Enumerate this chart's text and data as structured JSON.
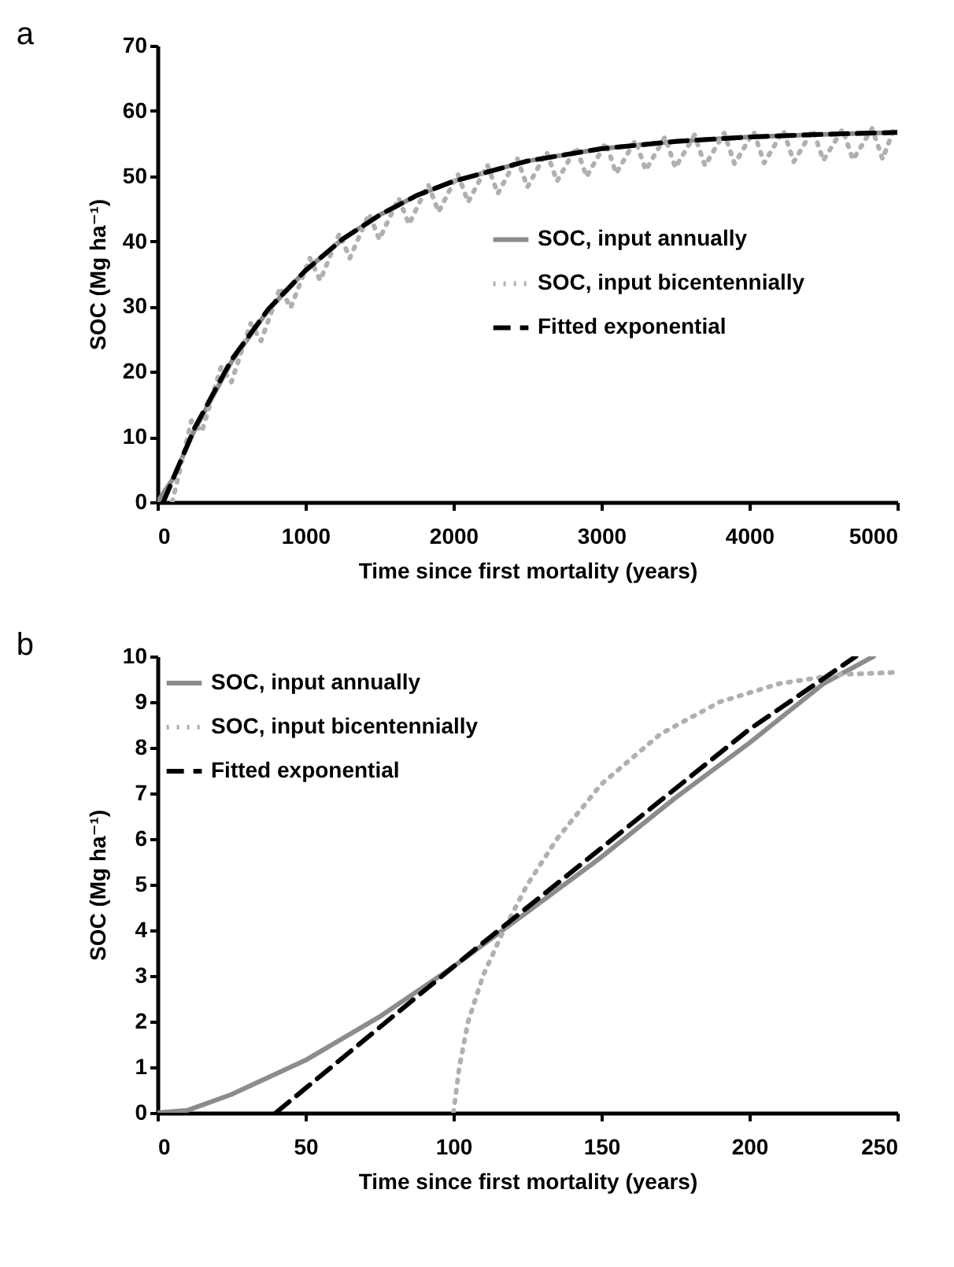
{
  "chart_data": [
    {
      "type": "line",
      "title": "a",
      "xlabel": "Time since first mortality (years)",
      "ylabel": "SOC (Mg ha⁻¹)",
      "xlim": [
        0,
        5000
      ],
      "xticks": [
        0,
        1000,
        2000,
        3000,
        4000,
        5000
      ],
      "ylim": [
        0,
        70
      ],
      "yticks": [
        0,
        10,
        20,
        30,
        40,
        50,
        60,
        70
      ],
      "grid": false,
      "legend": "right",
      "marker": "none",
      "series": [
        {
          "name": "SOC, input annually",
          "color": "#8c8c8c",
          "line_style": "solid",
          "x": [
            0,
            100,
            250,
            500,
            750,
            1000,
            1250,
            1500,
            1750,
            2000,
            2500,
            3000,
            3500,
            4000,
            4500,
            5000
          ],
          "values": [
            0,
            3.4,
            11,
            21.5,
            29.5,
            35.5,
            40.3,
            44,
            47,
            49.2,
            52.3,
            54.2,
            55.3,
            56,
            56.4,
            56.7
          ]
        },
        {
          "name": "SOC, input bicentennially",
          "color": "#b0b0b0",
          "line_style": "dotted",
          "x": [
            100,
            230,
            300,
            430,
            500,
            630,
            700,
            830,
            900,
            1030,
            1100,
            1230,
            1300,
            1430,
            1500,
            1630,
            1700,
            1830,
            1900,
            2030,
            2100,
            2230,
            2300,
            2430,
            2500,
            2630,
            2700,
            2830,
            2900,
            3030,
            3100,
            3230,
            3300,
            3430,
            3500,
            3630,
            3700,
            3830,
            3900,
            4030,
            4100,
            4230,
            4300,
            4430,
            4500,
            4630,
            4700,
            4830,
            4900,
            4980
          ],
          "values": [
            0,
            12.5,
            10.8,
            20.7,
            18.4,
            27.4,
            24.7,
            32.9,
            29.8,
            37.4,
            34,
            41.2,
            37.4,
            44.2,
            40.3,
            46.6,
            42.6,
            48.7,
            44.5,
            50.3,
            46,
            51.7,
            47.3,
            52.8,
            48.3,
            53.7,
            49.2,
            54.4,
            49.9,
            55.1,
            50.4,
            55.5,
            50.9,
            56,
            51.3,
            56.3,
            51.6,
            56.6,
            51.9,
            56.8,
            52,
            57,
            52.2,
            57.1,
            52.4,
            57.2,
            52.5,
            57.3,
            52.6,
            57.4
          ]
        },
        {
          "name": "Fitted exponential",
          "color": "#000000",
          "line_style": "dashed",
          "x": [
            40,
            250,
            500,
            750,
            1000,
            1250,
            1500,
            1750,
            2000,
            2500,
            3000,
            3500,
            4000,
            4500,
            5000
          ],
          "values": [
            0,
            11.3,
            21.8,
            29.6,
            35.5,
            40.3,
            44,
            47,
            49.2,
            52.3,
            54.2,
            55.3,
            56,
            56.4,
            56.7
          ]
        }
      ]
    },
    {
      "type": "line",
      "title": "b",
      "xlabel": "Time since first mortality (years)",
      "ylabel": "SOC (Mg ha⁻¹)",
      "xlim": [
        0,
        250
      ],
      "xticks": [
        0,
        50,
        100,
        150,
        200,
        250
      ],
      "ylim": [
        0,
        10
      ],
      "yticks": [
        0,
        1,
        2,
        3,
        4,
        5,
        6,
        7,
        8,
        9,
        10
      ],
      "grid": false,
      "legend": "top left",
      "marker": "none",
      "series": [
        {
          "name": "SOC, input annually",
          "color": "#8c8c8c",
          "line_style": "solid",
          "x": [
            0,
            10,
            25,
            50,
            75,
            100,
            125,
            150,
            175,
            200,
            225,
            242
          ],
          "values": [
            0,
            0.05,
            0.4,
            1.15,
            2.1,
            3.2,
            4.4,
            5.6,
            6.9,
            8.1,
            9.4,
            10
          ]
        },
        {
          "name": "SOC, input bicentennially",
          "color": "#b0b0b0",
          "line_style": "dotted",
          "x": [
            100,
            102,
            105,
            110,
            117,
            125,
            135,
            150,
            170,
            190,
            210,
            230,
            250
          ],
          "values": [
            0,
            1,
            2,
            3,
            4,
            5,
            6,
            7.2,
            8.3,
            9,
            9.4,
            9.6,
            9.65
          ]
        },
        {
          "name": "Fitted exponential",
          "color": "#000000",
          "line_style": "dashed",
          "x": [
            40,
            100,
            150,
            200,
            236
          ],
          "values": [
            0,
            3.2,
            5.8,
            8.4,
            10
          ]
        }
      ]
    }
  ]
}
